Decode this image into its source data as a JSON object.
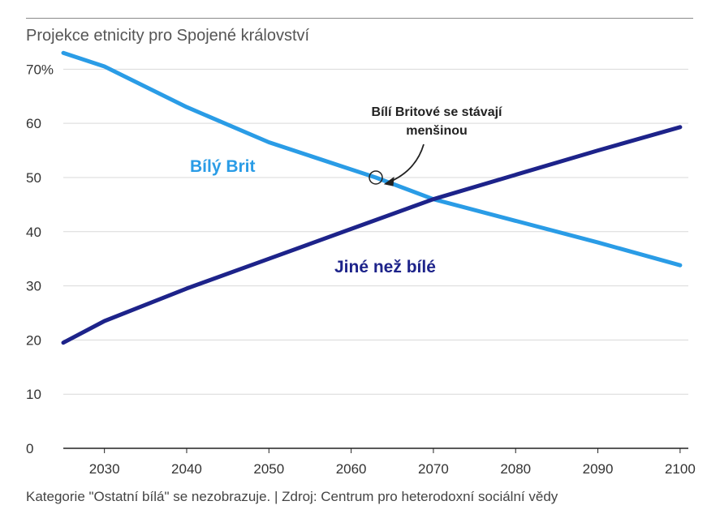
{
  "title": "Projekce etnicity pro Spojené království",
  "footer": "Kategorie \"Ostatní bílá\" se nezobrazuje. | Zdroj: Centrum pro heterodoxní sociální vědy",
  "chart_data": {
    "type": "line",
    "x_ticks": [
      2030,
      2040,
      2050,
      2060,
      2070,
      2080,
      2090,
      2100
    ],
    "y_ticks": [
      0,
      10,
      20,
      30,
      40,
      50,
      60,
      70
    ],
    "y_tick_labels": [
      "0",
      "10",
      "20",
      "30",
      "40",
      "50",
      "60",
      "70%"
    ],
    "xlim": [
      2025,
      2101
    ],
    "ylim": [
      0,
      72
    ],
    "grid": true,
    "series": [
      {
        "name": "Bílý Brit",
        "color": "#2a9ce6",
        "x": [
          2025,
          2030,
          2040,
          2050,
          2060,
          2063,
          2070,
          2080,
          2090,
          2100
        ],
        "y": [
          73,
          70.5,
          63,
          56.5,
          51.5,
          50,
          46,
          42,
          38,
          33.8
        ]
      },
      {
        "name": "Jiné než bílé",
        "color": "#1d238a",
        "x": [
          2025,
          2030,
          2040,
          2050,
          2060,
          2070,
          2080,
          2090,
          2100
        ],
        "y": [
          19.5,
          23.5,
          29.5,
          35,
          40.5,
          46,
          50.5,
          55,
          59.3
        ]
      }
    ],
    "annotation": {
      "text_lines": [
        "Bílí Britové se stávají",
        "menšinou"
      ],
      "point": [
        2063,
        50
      ]
    }
  }
}
